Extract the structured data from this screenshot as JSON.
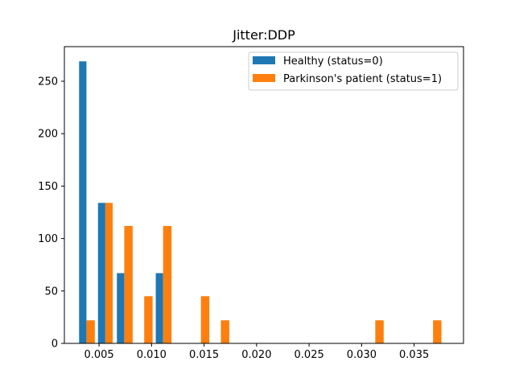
{
  "chart_data": {
    "type": "bar",
    "title": "Jitter:DDP",
    "xlabel": "",
    "ylabel": "",
    "xlim": [
      0.0017,
      0.0397
    ],
    "ylim": [
      0,
      283
    ],
    "x_ticks": [
      0.005,
      0.01,
      0.015,
      0.02,
      0.025,
      0.03,
      0.035
    ],
    "x_tick_labels": [
      "0.005",
      "0.010",
      "0.015",
      "0.020",
      "0.025",
      "0.030",
      "0.035"
    ],
    "y_ticks": [
      0,
      50,
      100,
      150,
      200,
      250
    ],
    "y_tick_labels": [
      "0",
      "50",
      "100",
      "150",
      "200",
      "250"
    ],
    "legend_position": "top-right",
    "grid": false,
    "series": [
      {
        "name": "Healthy (status=0)",
        "color": "#1f77b4",
        "bars": [
          {
            "x0": 0.0031,
            "x1": 0.0038,
            "value": 269
          },
          {
            "x0": 0.0049,
            "x1": 0.0056,
            "value": 134
          },
          {
            "x0": 0.0067,
            "x1": 0.0074,
            "value": 67
          },
          {
            "x0": 0.0104,
            "x1": 0.0111,
            "value": 67
          }
        ]
      },
      {
        "name": "Parkinson's patient (status=1)",
        "color": "#ff7f0e",
        "bars": [
          {
            "x0": 0.0038,
            "x1": 0.0046,
            "value": 22
          },
          {
            "x0": 0.0056,
            "x1": 0.0063,
            "value": 134
          },
          {
            "x0": 0.0074,
            "x1": 0.0082,
            "value": 112
          },
          {
            "x0": 0.0093,
            "x1": 0.0101,
            "value": 45
          },
          {
            "x0": 0.0111,
            "x1": 0.0119,
            "value": 112
          },
          {
            "x0": 0.0147,
            "x1": 0.0155,
            "value": 45
          },
          {
            "x0": 0.0166,
            "x1": 0.0174,
            "value": 22
          },
          {
            "x0": 0.0313,
            "x1": 0.0321,
            "value": 22
          },
          {
            "x0": 0.0368,
            "x1": 0.0376,
            "value": 22
          }
        ]
      }
    ]
  }
}
